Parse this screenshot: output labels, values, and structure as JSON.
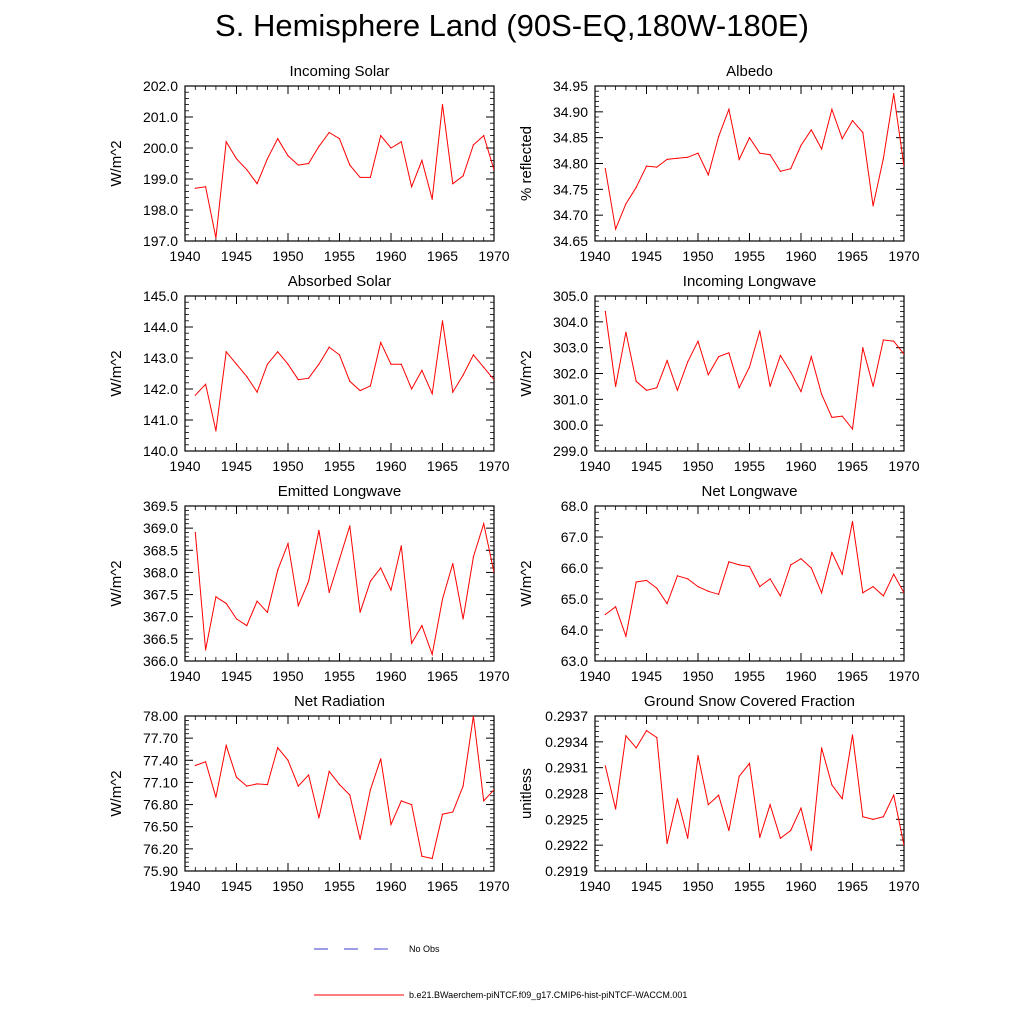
{
  "title": "S. Hemisphere Land (90S-EQ,180W-180E)",
  "legend": {
    "no_obs": "No Obs",
    "model": "b.e21.BWaerchem-piNTCF.f09_g17.CMIP6-hist-piNTCF-WACCM.001",
    "model_color": "#ff0000",
    "no_obs_color": "#3b3bd6"
  },
  "chart_data": [
    {
      "type": "line",
      "title": "Incoming Solar",
      "ylabel": "W/m^2",
      "xlim": [
        1940,
        1970
      ],
      "ylim": [
        197.0,
        202.0
      ],
      "xticks": [
        1940,
        1945,
        1950,
        1955,
        1960,
        1965,
        1970
      ],
      "yticks": [
        "197.0",
        "198.0",
        "199.0",
        "200.0",
        "201.0",
        "202.0"
      ],
      "x": [
        1941,
        1942,
        1943,
        1944,
        1945,
        1946,
        1947,
        1948,
        1949,
        1950,
        1951,
        1952,
        1953,
        1954,
        1955,
        1956,
        1957,
        1958,
        1959,
        1960,
        1961,
        1962,
        1963,
        1964,
        1965,
        1966,
        1967,
        1968,
        1969,
        1970
      ],
      "values": [
        198.7,
        198.75,
        197.1,
        200.2,
        199.65,
        199.3,
        198.85,
        199.65,
        200.3,
        199.75,
        199.45,
        199.5,
        200.05,
        200.5,
        200.3,
        199.45,
        199.05,
        199.05,
        200.4,
        200.0,
        200.2,
        198.75,
        199.6,
        198.35,
        201.4,
        198.85,
        199.1,
        200.1,
        200.4,
        199.3
      ],
      "series_color": "#ff0000"
    },
    {
      "type": "line",
      "title": "Albedo",
      "ylabel": "% reflected",
      "xlim": [
        1940,
        1970
      ],
      "ylim": [
        34.65,
        34.95
      ],
      "xticks": [
        1940,
        1945,
        1950,
        1955,
        1960,
        1965,
        1970
      ],
      "yticks": [
        "34.65",
        "34.70",
        "34.75",
        "34.80",
        "34.85",
        "34.90",
        "34.95"
      ],
      "x": [
        1941,
        1942,
        1943,
        1944,
        1945,
        1946,
        1947,
        1948,
        1949,
        1950,
        1951,
        1952,
        1953,
        1954,
        1955,
        1956,
        1957,
        1958,
        1959,
        1960,
        1961,
        1962,
        1963,
        1964,
        1965,
        1966,
        1967,
        1968,
        1969,
        1970
      ],
      "values": [
        34.79,
        34.673,
        34.722,
        34.754,
        34.795,
        34.793,
        34.808,
        34.81,
        34.812,
        34.82,
        34.778,
        34.852,
        34.905,
        34.808,
        34.85,
        34.82,
        34.817,
        34.785,
        34.79,
        34.835,
        34.865,
        34.828,
        34.905,
        34.848,
        34.883,
        34.86,
        34.718,
        34.81,
        34.935,
        34.795
      ],
      "series_color": "#ff0000"
    },
    {
      "type": "line",
      "title": "Absorbed Solar",
      "ylabel": "W/m^2",
      "xlim": [
        1940,
        1970
      ],
      "ylim": [
        140.0,
        145.0
      ],
      "xticks": [
        1940,
        1945,
        1950,
        1955,
        1960,
        1965,
        1970
      ],
      "yticks": [
        "140.0",
        "141.0",
        "142.0",
        "143.0",
        "144.0",
        "145.0"
      ],
      "x": [
        1941,
        1942,
        1943,
        1944,
        1945,
        1946,
        1947,
        1948,
        1949,
        1950,
        1951,
        1952,
        1953,
        1954,
        1955,
        1956,
        1957,
        1958,
        1959,
        1960,
        1961,
        1962,
        1963,
        1964,
        1965,
        1966,
        1967,
        1968,
        1969,
        1970
      ],
      "values": [
        141.8,
        142.15,
        140.65,
        143.2,
        142.8,
        142.4,
        141.9,
        142.8,
        143.2,
        142.8,
        142.3,
        142.35,
        142.8,
        143.35,
        143.1,
        142.25,
        141.95,
        142.1,
        143.5,
        142.8,
        142.8,
        142.0,
        142.6,
        141.85,
        144.2,
        141.9,
        142.45,
        143.1,
        142.7,
        142.3
      ],
      "series_color": "#ff0000"
    },
    {
      "type": "line",
      "title": "Incoming Longwave",
      "ylabel": "W/m^2",
      "xlim": [
        1940,
        1970
      ],
      "ylim": [
        299.0,
        305.0
      ],
      "xticks": [
        1940,
        1945,
        1950,
        1955,
        1960,
        1965,
        1970
      ],
      "yticks": [
        "299.0",
        "300.0",
        "301.0",
        "302.0",
        "303.0",
        "304.0",
        "305.0"
      ],
      "x": [
        1941,
        1942,
        1943,
        1944,
        1945,
        1946,
        1947,
        1948,
        1949,
        1950,
        1951,
        1952,
        1953,
        1954,
        1955,
        1956,
        1957,
        1958,
        1959,
        1960,
        1961,
        1962,
        1963,
        1964,
        1965,
        1966,
        1967,
        1968,
        1969,
        1970
      ],
      "values": [
        304.4,
        301.5,
        303.6,
        301.7,
        301.35,
        301.45,
        302.5,
        301.35,
        302.45,
        303.25,
        301.95,
        302.65,
        302.8,
        301.45,
        302.25,
        303.65,
        301.5,
        302.7,
        302.05,
        301.3,
        302.65,
        301.2,
        300.3,
        300.35,
        299.85,
        303.0,
        301.5,
        303.3,
        303.25,
        302.75
      ],
      "series_color": "#ff0000"
    },
    {
      "type": "line",
      "title": "Emitted Longwave",
      "ylabel": "W/m^2",
      "xlim": [
        1940,
        1970
      ],
      "ylim": [
        366.0,
        369.5
      ],
      "xticks": [
        1940,
        1945,
        1950,
        1955,
        1960,
        1965,
        1970
      ],
      "yticks": [
        "366.0",
        "366.5",
        "367.0",
        "367.5",
        "368.0",
        "368.5",
        "369.0",
        "369.5"
      ],
      "x": [
        1941,
        1942,
        1943,
        1944,
        1945,
        1946,
        1947,
        1948,
        1949,
        1950,
        1951,
        1952,
        1953,
        1954,
        1955,
        1956,
        1957,
        1958,
        1959,
        1960,
        1961,
        1962,
        1963,
        1964,
        1965,
        1966,
        1967,
        1968,
        1969,
        1970
      ],
      "values": [
        368.9,
        366.25,
        367.45,
        367.3,
        366.95,
        366.8,
        367.35,
        367.1,
        368.05,
        368.65,
        367.25,
        367.8,
        368.95,
        367.55,
        368.3,
        369.05,
        367.1,
        367.8,
        368.1,
        367.6,
        368.6,
        366.4,
        366.8,
        366.15,
        367.4,
        368.2,
        366.95,
        368.35,
        369.1,
        368.0
      ],
      "series_color": "#ff0000"
    },
    {
      "type": "line",
      "title": "Net Longwave",
      "ylabel": "W/m^2",
      "xlim": [
        1940,
        1970
      ],
      "ylim": [
        63.0,
        68.0
      ],
      "xticks": [
        1940,
        1945,
        1950,
        1955,
        1960,
        1965,
        1970
      ],
      "yticks": [
        "63.0",
        "64.0",
        "65.0",
        "66.0",
        "67.0",
        "68.0"
      ],
      "x": [
        1941,
        1942,
        1943,
        1944,
        1945,
        1946,
        1947,
        1948,
        1949,
        1950,
        1951,
        1952,
        1953,
        1954,
        1955,
        1956,
        1957,
        1958,
        1959,
        1960,
        1961,
        1962,
        1963,
        1964,
        1965,
        1966,
        1967,
        1968,
        1969,
        1970
      ],
      "values": [
        64.5,
        64.75,
        63.8,
        65.55,
        65.6,
        65.35,
        64.85,
        65.75,
        65.65,
        65.4,
        65.25,
        65.15,
        66.2,
        66.1,
        66.05,
        65.4,
        65.65,
        65.1,
        66.1,
        66.3,
        66.0,
        65.2,
        66.5,
        65.8,
        67.5,
        65.2,
        65.4,
        65.1,
        65.8,
        65.2
      ],
      "series_color": "#ff0000"
    },
    {
      "type": "line",
      "title": "Net Radiation",
      "ylabel": "W/m^2",
      "xlim": [
        1940,
        1970
      ],
      "ylim": [
        75.9,
        78.0
      ],
      "xticks": [
        1940,
        1945,
        1950,
        1955,
        1960,
        1965,
        1970
      ],
      "yticks": [
        "75.90",
        "76.20",
        "76.50",
        "76.80",
        "77.10",
        "77.40",
        "77.70",
        "78.00"
      ],
      "x": [
        1941,
        1942,
        1943,
        1944,
        1945,
        1946,
        1947,
        1948,
        1949,
        1950,
        1951,
        1952,
        1953,
        1954,
        1955,
        1956,
        1957,
        1958,
        1959,
        1960,
        1961,
        1962,
        1963,
        1964,
        1965,
        1966,
        1967,
        1968,
        1969,
        1970
      ],
      "values": [
        77.33,
        77.38,
        76.9,
        77.6,
        77.17,
        77.05,
        77.08,
        77.07,
        77.57,
        77.4,
        77.05,
        77.2,
        76.62,
        77.25,
        77.07,
        76.93,
        76.33,
        77.0,
        77.42,
        76.53,
        76.85,
        76.8,
        76.1,
        76.07,
        76.67,
        76.7,
        77.05,
        78.0,
        76.85,
        77.0
      ],
      "series_color": "#ff0000"
    },
    {
      "type": "line",
      "title": "Ground Snow Covered Fraction",
      "ylabel": "unitless",
      "xlim": [
        1940,
        1970
      ],
      "ylim": [
        0.2919,
        0.2937
      ],
      "xticks": [
        1940,
        1945,
        1950,
        1955,
        1960,
        1965,
        1970
      ],
      "yticks": [
        "0.2919",
        "0.2922",
        "0.2925",
        "0.2928",
        "0.2931",
        "0.2934",
        "0.2937"
      ],
      "x": [
        1941,
        1942,
        1943,
        1944,
        1945,
        1946,
        1947,
        1948,
        1949,
        1950,
        1951,
        1952,
        1953,
        1954,
        1955,
        1956,
        1957,
        1958,
        1959,
        1960,
        1961,
        1962,
        1963,
        1964,
        1965,
        1966,
        1967,
        1968,
        1969,
        1970
      ],
      "values": [
        0.29312,
        0.29262,
        0.29347,
        0.29333,
        0.29353,
        0.29345,
        0.29222,
        0.29274,
        0.29228,
        0.29324,
        0.29267,
        0.29278,
        0.29237,
        0.293,
        0.29315,
        0.29229,
        0.29267,
        0.29228,
        0.29237,
        0.29263,
        0.29214,
        0.29333,
        0.2929,
        0.29274,
        0.29348,
        0.29253,
        0.2925,
        0.29253,
        0.29278,
        0.2922
      ],
      "series_color": "#ff0000"
    }
  ]
}
